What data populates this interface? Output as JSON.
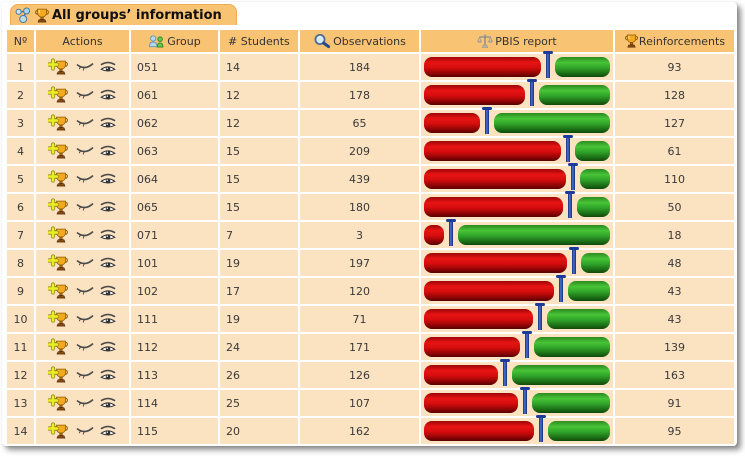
{
  "title_bar": {
    "title": "All groups’ information"
  },
  "table": {
    "headers": {
      "num": "Nº",
      "actions": "Actions",
      "group": "Group",
      "students": "# Students",
      "observations": "Observations",
      "pbis": "PBIS report",
      "reinforcements": "Reinforcements"
    },
    "rows": [
      {
        "n": "1",
        "group": "051",
        "students": "14",
        "observations": 184,
        "reinforcements": 93
      },
      {
        "n": "2",
        "group": "061",
        "students": "12",
        "observations": 178,
        "reinforcements": 128
      },
      {
        "n": "3",
        "group": "062",
        "students": "12",
        "observations": 65,
        "reinforcements": 127
      },
      {
        "n": "4",
        "group": "063",
        "students": "15",
        "observations": 209,
        "reinforcements": 61
      },
      {
        "n": "5",
        "group": "064",
        "students": "15",
        "observations": 439,
        "reinforcements": 110
      },
      {
        "n": "6",
        "group": "065",
        "students": "15",
        "observations": 180,
        "reinforcements": 50
      },
      {
        "n": "7",
        "group": "071",
        "students": "7",
        "observations": 3,
        "reinforcements": 18
      },
      {
        "n": "8",
        "group": "101",
        "students": "19",
        "observations": 197,
        "reinforcements": 48
      },
      {
        "n": "9",
        "group": "102",
        "students": "17",
        "observations": 120,
        "reinforcements": 43
      },
      {
        "n": "10",
        "group": "111",
        "students": "19",
        "observations": 71,
        "reinforcements": 43
      },
      {
        "n": "11",
        "group": "112",
        "students": "24",
        "observations": 171,
        "reinforcements": 139
      },
      {
        "n": "12",
        "group": "113",
        "students": "26",
        "observations": 126,
        "reinforcements": 163
      },
      {
        "n": "13",
        "group": "114",
        "students": "25",
        "observations": 107,
        "reinforcements": 91
      },
      {
        "n": "14",
        "group": "115",
        "students": "20",
        "observations": 162,
        "reinforcements": 95
      }
    ]
  },
  "icons": {
    "tab": [
      "groups-icon",
      "trophy-icon"
    ],
    "group_header": "two-persons-icon",
    "observations_header": "magnifier-icon",
    "pbis_header": "balance-scale-icon",
    "reinforcements_header": "trophy-icon",
    "row_actions": [
      "add-reinforcement-trophy-icon",
      "closed-eye-icon",
      "open-eye-icon"
    ]
  },
  "colors": {
    "header_bg": "#f9c374",
    "row_bg": "#fbe2c1",
    "bar_red": "#d30d0d",
    "bar_green": "#2fa32a",
    "pin_navy": "#1b3a9a",
    "tab_border": "#f0ab4e"
  },
  "bar_semantics": "red width = observations / (observations + reinforcements)"
}
